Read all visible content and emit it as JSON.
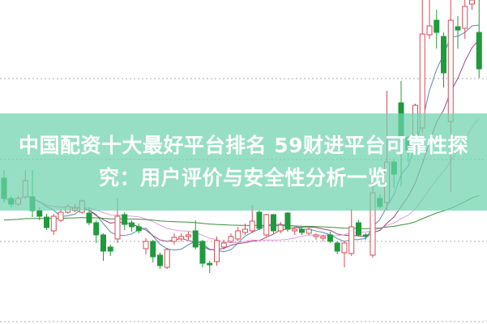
{
  "headline": {
    "line1": "中国配资十大最好平台排名 59财进平台可靠性探",
    "line2": "究：用户评价与安全性分析一览"
  },
  "colors": {
    "up": "#d64b55",
    "down": "#1f9a3c",
    "banner": "#6ed2af",
    "grid": "#aaaaaa",
    "ma": [
      "#5a8ab0",
      "#a0457a",
      "#e79be0",
      "#3f8f3f"
    ]
  },
  "chart_data": {
    "type": "candlestick",
    "title": "",
    "grid": true,
    "legend": "none",
    "axes_visible": false,
    "ylim": [
      0,
      100
    ],
    "ohlc_fields": [
      "open",
      "close",
      "high",
      "low"
    ],
    "candles": [
      [
        45,
        38.75,
        47.5,
        37.5
      ],
      [
        38.75,
        37,
        39.5,
        36
      ],
      [
        37,
        38.75,
        39.5,
        36.5
      ],
      [
        39.25,
        44.25,
        47.5,
        38.5
      ],
      [
        39.25,
        35,
        47.5,
        33
      ],
      [
        35,
        33.25,
        36,
        32
      ],
      [
        33,
        29.75,
        34,
        29
      ],
      [
        28.75,
        33.25,
        34,
        27.5
      ],
      [
        32,
        34.5,
        35.5,
        31.5
      ],
      [
        34.5,
        36.25,
        37,
        34
      ],
      [
        35,
        35.75,
        37,
        34.5
      ],
      [
        34.5,
        38,
        38.5,
        34
      ],
      [
        34.25,
        31.25,
        36,
        30.5
      ],
      [
        31.25,
        27.5,
        32,
        25
      ],
      [
        27.5,
        22.5,
        28,
        19.5
      ],
      [
        23.75,
        22.5,
        24.5,
        21
      ],
      [
        26.25,
        33.25,
        38.75,
        25
      ],
      [
        33.75,
        30.75,
        34.5,
        29
      ],
      [
        31.25,
        30,
        32,
        28.5
      ],
      [
        30,
        28.75,
        31,
        28
      ],
      [
        23.25,
        25.5,
        26.5,
        21.5
      ],
      [
        25.5,
        20.75,
        26,
        19
      ],
      [
        21.25,
        18,
        22,
        17
      ],
      [
        17.5,
        23,
        23.5,
        17
      ],
      [
        25.5,
        26.75,
        28,
        24.5
      ],
      [
        26.25,
        27,
        28,
        25.5
      ],
      [
        27,
        27.5,
        28.5,
        26
      ],
      [
        28.75,
        23.75,
        32,
        23
      ],
      [
        25.5,
        18.75,
        26,
        17.5
      ],
      [
        18.75,
        18.25,
        19.5,
        15.75
      ],
      [
        19.25,
        25.75,
        27,
        18
      ],
      [
        23.75,
        25,
        26,
        23
      ],
      [
        25.5,
        27,
        28,
        25
      ],
      [
        26.25,
        28.75,
        30,
        25.5
      ],
      [
        28.25,
        29.25,
        31,
        27.5
      ],
      [
        28.75,
        31.75,
        36.75,
        28
      ],
      [
        34.5,
        29.5,
        35,
        29
      ],
      [
        27.5,
        33.75,
        34,
        27
      ],
      [
        33.75,
        28.75,
        34,
        28
      ],
      [
        28.75,
        30.5,
        31.5,
        28
      ],
      [
        34.25,
        29.25,
        34.5,
        28.5
      ],
      [
        28.75,
        29.25,
        30,
        27.5
      ],
      [
        29.25,
        28.25,
        30,
        27.5
      ],
      [
        28,
        29.25,
        30,
        27.5
      ],
      [
        27,
        27.5,
        28,
        26
      ],
      [
        26.5,
        27,
        27.5,
        25.5
      ],
      [
        27.5,
        25.5,
        28.5,
        25
      ],
      [
        25,
        22.5,
        25.5,
        21.5
      ],
      [
        22,
        25,
        25.5,
        17.5
      ],
      [
        21.75,
        30,
        35.5,
        21
      ],
      [
        31.25,
        27.5,
        32,
        27
      ],
      [
        27.5,
        27,
        28,
        26
      ],
      [
        21.25,
        40.5,
        43.75,
        20.5
      ],
      [
        38.75,
        36.25,
        40,
        35.5
      ],
      [
        37.5,
        50,
        72,
        35
      ],
      [
        50,
        46.25,
        51,
        42
      ],
      [
        68.25,
        57.5,
        75,
        42.5
      ],
      [
        57.5,
        53.75,
        58,
        50
      ],
      [
        58,
        67.5,
        68,
        57
      ],
      [
        60.5,
        89.5,
        100,
        59
      ],
      [
        89.25,
        92,
        100,
        88
      ],
      [
        93.75,
        90,
        97,
        85
      ],
      [
        88.75,
        77.5,
        90,
        73
      ],
      [
        62.5,
        93.75,
        100,
        40.75
      ],
      [
        91.75,
        90.75,
        95,
        85
      ],
      [
        91.25,
        98,
        100,
        88
      ],
      [
        98.75,
        100,
        100,
        97
      ],
      [
        90,
        78.75,
        100,
        76
      ]
    ],
    "moving_averages": [
      5,
      10,
      20,
      60
    ]
  }
}
